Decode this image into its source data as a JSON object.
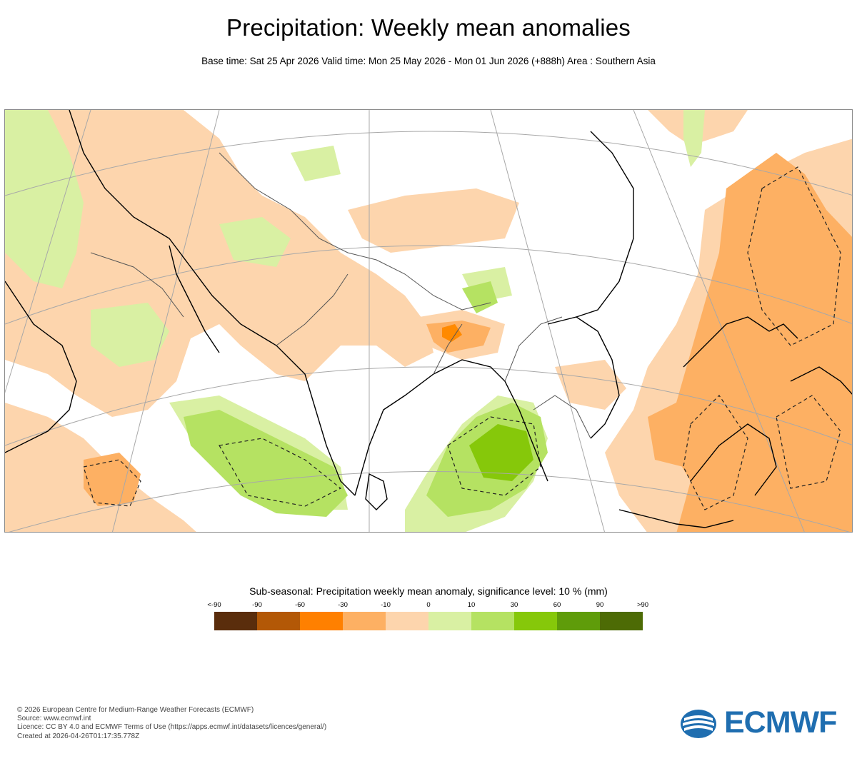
{
  "header": {
    "title": "Precipitation: Weekly mean anomalies",
    "subtitle": "Base time: Sat 25 Apr 2026 Valid time: Mon 25 May 2026 - Mon 01 Jun 2026 (+888h) Area : Southern Asia"
  },
  "colorbar": {
    "title": "Sub-seasonal: Precipitation weekly mean anomaly, significance level: 10 % (mm)",
    "labels": [
      "<-90",
      "-90",
      "-60",
      "-30",
      "-10",
      "0",
      "10",
      "30",
      "60",
      "90",
      ">90"
    ],
    "colors": [
      "#5a2d0c",
      "#b35806",
      "#ff8000",
      "#fdb063",
      "#fdd5ad",
      "#d9f0a3",
      "#b5e262",
      "#86c80a",
      "#5f9c0a",
      "#4d6b05"
    ]
  },
  "map_colors": {
    "strong_dry": "#ff8a00",
    "dry": "#fdb063",
    "weak_dry": "#fdd5ad",
    "weak_wet": "#d9f0a3",
    "wet": "#b5e262",
    "strong_wet": "#86c80a"
  },
  "credits": {
    "line1": "© 2026 European Centre for Medium-Range Weather Forecasts (ECMWF)",
    "line2": "Source: www.ecmwf.int",
    "line3": "Licence: CC BY 4.0 and ECMWF Terms of Use (https://apps.ecmwf.int/datasets/licences/general/)",
    "line4": "Created at 2026-04-26T01:17:35.778Z"
  },
  "logo": {
    "text": "ECMWF",
    "color": "#1f6eb0"
  }
}
